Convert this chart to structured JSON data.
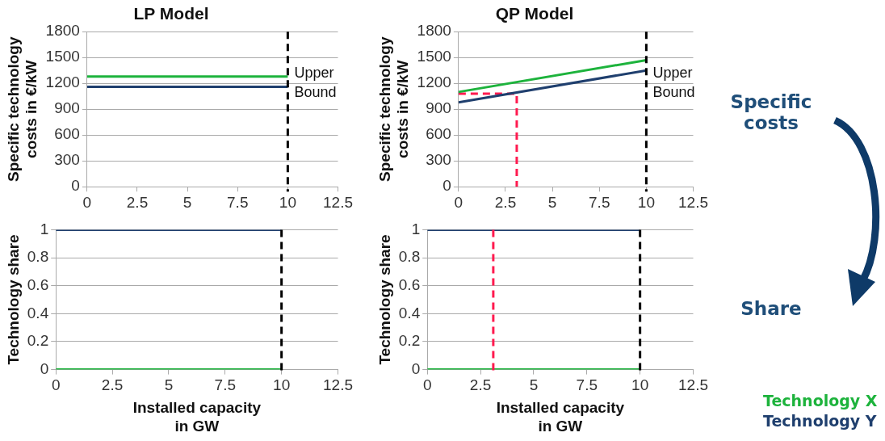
{
  "chart_data": [
    {
      "type": "line",
      "title": "LP Model",
      "ylabel": "Specific technology costs in €/kW",
      "xlim": [
        0,
        12.5
      ],
      "xticks": [
        0,
        2.5,
        5,
        7.5,
        10,
        12.5
      ],
      "ylim": [
        0,
        1800
      ],
      "yticks": [
        0,
        300,
        600,
        900,
        1200,
        1500,
        1800
      ],
      "grid": "y",
      "marker": "none",
      "series": [
        {
          "color": "#1db33c",
          "x": [
            0,
            10
          ],
          "values": [
            1280,
            1280
          ]
        },
        {
          "color": "#1f3f6e",
          "x": [
            0,
            10
          ],
          "values": [
            1160,
            1160
          ]
        }
      ],
      "ref_lines": [
        {
          "axis": "x",
          "value": 10,
          "label": "Upper Bound",
          "color": "#000000",
          "line_style": "dashed"
        }
      ]
    },
    {
      "type": "line",
      "title": "QP Model",
      "ylabel": "Specific technology costs in €/kW",
      "xlim": [
        0,
        12.5
      ],
      "xticks": [
        0,
        2.5,
        5,
        7.5,
        10,
        12.5
      ],
      "ylim": [
        0,
        1800
      ],
      "yticks": [
        0,
        300,
        600,
        900,
        1200,
        1500,
        1800
      ],
      "grid": "y",
      "marker": "none",
      "series": [
        {
          "color": "#1db33c",
          "x": [
            0,
            10
          ],
          "values": [
            1100,
            1470
          ]
        },
        {
          "color": "#1f3f6e",
          "x": [
            0,
            10
          ],
          "values": [
            980,
            1350
          ]
        },
        {
          "color": "#ff1a4f",
          "line_style": "dashed",
          "x": [
            0,
            3.1,
            3.1
          ],
          "values": [
            1080,
            1080,
            0
          ]
        }
      ],
      "ref_lines": [
        {
          "axis": "x",
          "value": 10,
          "label": "Upper Bound",
          "color": "#000000",
          "line_style": "dashed"
        }
      ],
      "annotations": [
        "Specific costs"
      ]
    },
    {
      "type": "line",
      "xlabel": "Installed capacity in GW",
      "ylabel": "Technology share",
      "xlim": [
        0,
        12.5
      ],
      "xticks": [
        0,
        2.5,
        5,
        7.5,
        10,
        12.5
      ],
      "ylim": [
        0,
        1
      ],
      "yticks": [
        0,
        0.2,
        0.4,
        0.6,
        0.8,
        1
      ],
      "grid": "y",
      "marker": "none",
      "series": [
        {
          "color": "#1db33c",
          "x": [
            0,
            10
          ],
          "values": [
            0,
            0
          ]
        },
        {
          "color": "#1f3f6e",
          "x": [
            0,
            10
          ],
          "values": [
            1,
            1
          ]
        }
      ],
      "ref_lines": [
        {
          "axis": "x",
          "value": 10,
          "color": "#000000",
          "line_style": "dashed"
        }
      ]
    },
    {
      "type": "line",
      "xlabel": "Installed capacity in GW",
      "ylabel": "Technology share",
      "xlim": [
        0,
        12.5
      ],
      "xticks": [
        0,
        2.5,
        5,
        7.5,
        10,
        12.5
      ],
      "ylim": [
        0,
        1
      ],
      "yticks": [
        0,
        0.2,
        0.4,
        0.6,
        0.8,
        1
      ],
      "grid": "y",
      "marker": "none",
      "legend": "right",
      "series": [
        {
          "name": "Technology X",
          "color": "#1db33c",
          "x": [
            0,
            10
          ],
          "values": [
            0,
            0
          ]
        },
        {
          "name": "Technology Y",
          "color": "#1f3f6e",
          "x": [
            0,
            10
          ],
          "values": [
            1,
            1
          ]
        }
      ],
      "ref_lines": [
        {
          "axis": "x",
          "value": 10,
          "color": "#000000",
          "line_style": "dashed"
        },
        {
          "axis": "x",
          "value": 3.1,
          "color": "#ff1a4f",
          "line_style": "dashed"
        }
      ],
      "annotations": [
        "Share"
      ]
    }
  ]
}
